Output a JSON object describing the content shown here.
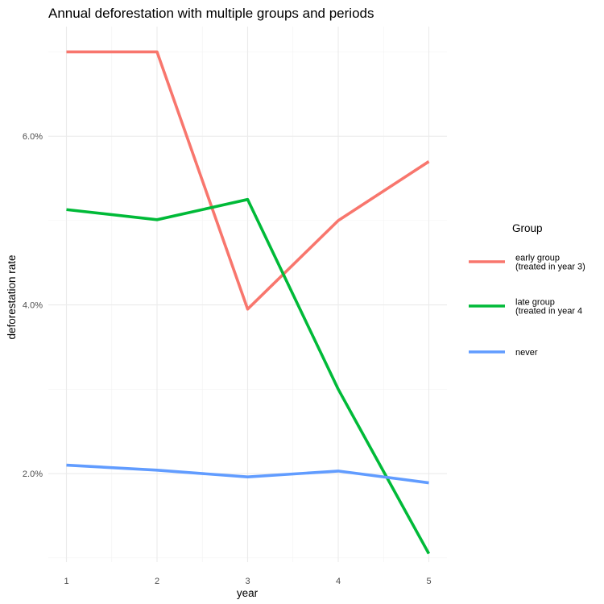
{
  "chart_data": {
    "type": "line",
    "title": "Annual deforestation with multiple groups and periods",
    "xlabel": "year",
    "ylabel": "deforestation rate",
    "x": [
      1,
      2,
      3,
      4,
      5
    ],
    "x_ticks": [
      "1",
      "2",
      "3",
      "4",
      "5"
    ],
    "xlim": [
      0.8,
      5.2
    ],
    "ylim": [
      0.0095,
      0.073
    ],
    "y_ticks": [
      0.02,
      0.04,
      0.06
    ],
    "y_tick_labels": [
      "2.0%",
      "4.0%",
      "6.0%"
    ],
    "y_minor_ticks": [
      0.01,
      0.03,
      0.05,
      0.07
    ],
    "grid": true,
    "legend": {
      "title": "Group",
      "placement": "right"
    },
    "series": [
      {
        "name": "early group\n(treated in year 3)",
        "color": "#F8766D",
        "values": [
          0.07,
          0.07,
          0.0395,
          0.05,
          0.057
        ]
      },
      {
        "name": "late group\n(treated in year 4",
        "color": "#00BA38",
        "values": [
          0.0513,
          0.0501,
          0.0525,
          0.03,
          0.0105
        ]
      },
      {
        "name": "never",
        "color": "#619CFF",
        "values": [
          0.021,
          0.0204,
          0.0196,
          0.0203,
          0.0189
        ]
      }
    ]
  }
}
